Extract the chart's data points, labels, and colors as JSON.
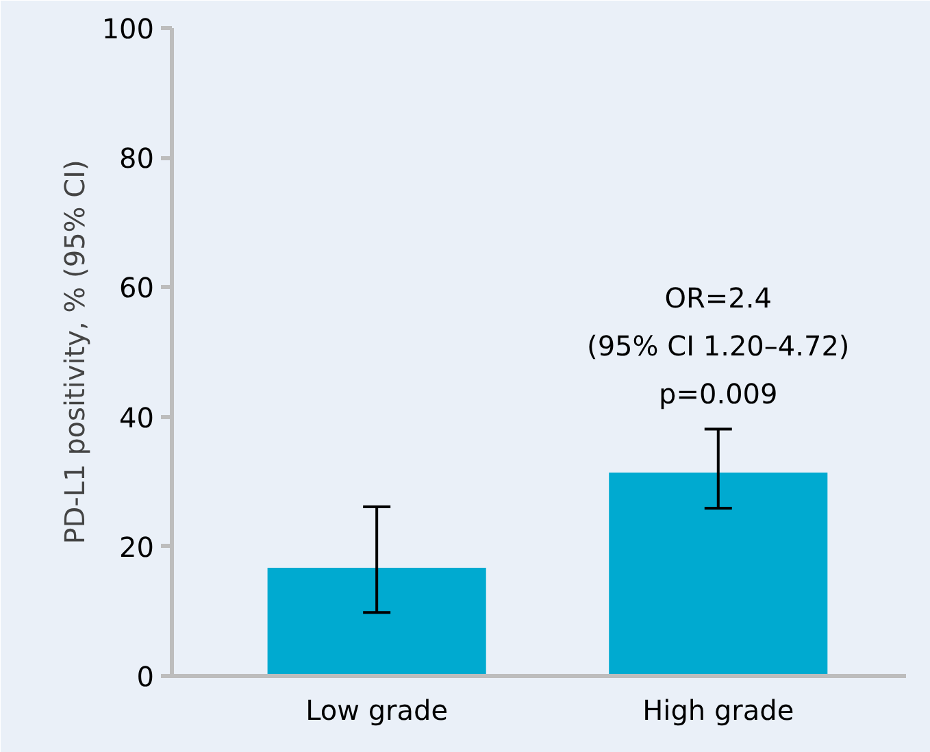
{
  "chart_data": {
    "type": "bar",
    "ylabel": "PD-L1 positivity, % (95% CI)",
    "categories": [
      "Low grade",
      "High grade"
    ],
    "values": [
      16.7,
      31.4
    ],
    "errors": [
      [
        9.8,
        26.1
      ],
      [
        25.9,
        38.1
      ]
    ],
    "color": "#00aad0",
    "ylim": [
      0,
      100
    ],
    "yticks": [
      0,
      20,
      40,
      60,
      80,
      100
    ],
    "grid": false,
    "annotations": [
      "OR=2.4",
      "(95% CI 1.20–4.72)",
      "p=0.009"
    ]
  }
}
